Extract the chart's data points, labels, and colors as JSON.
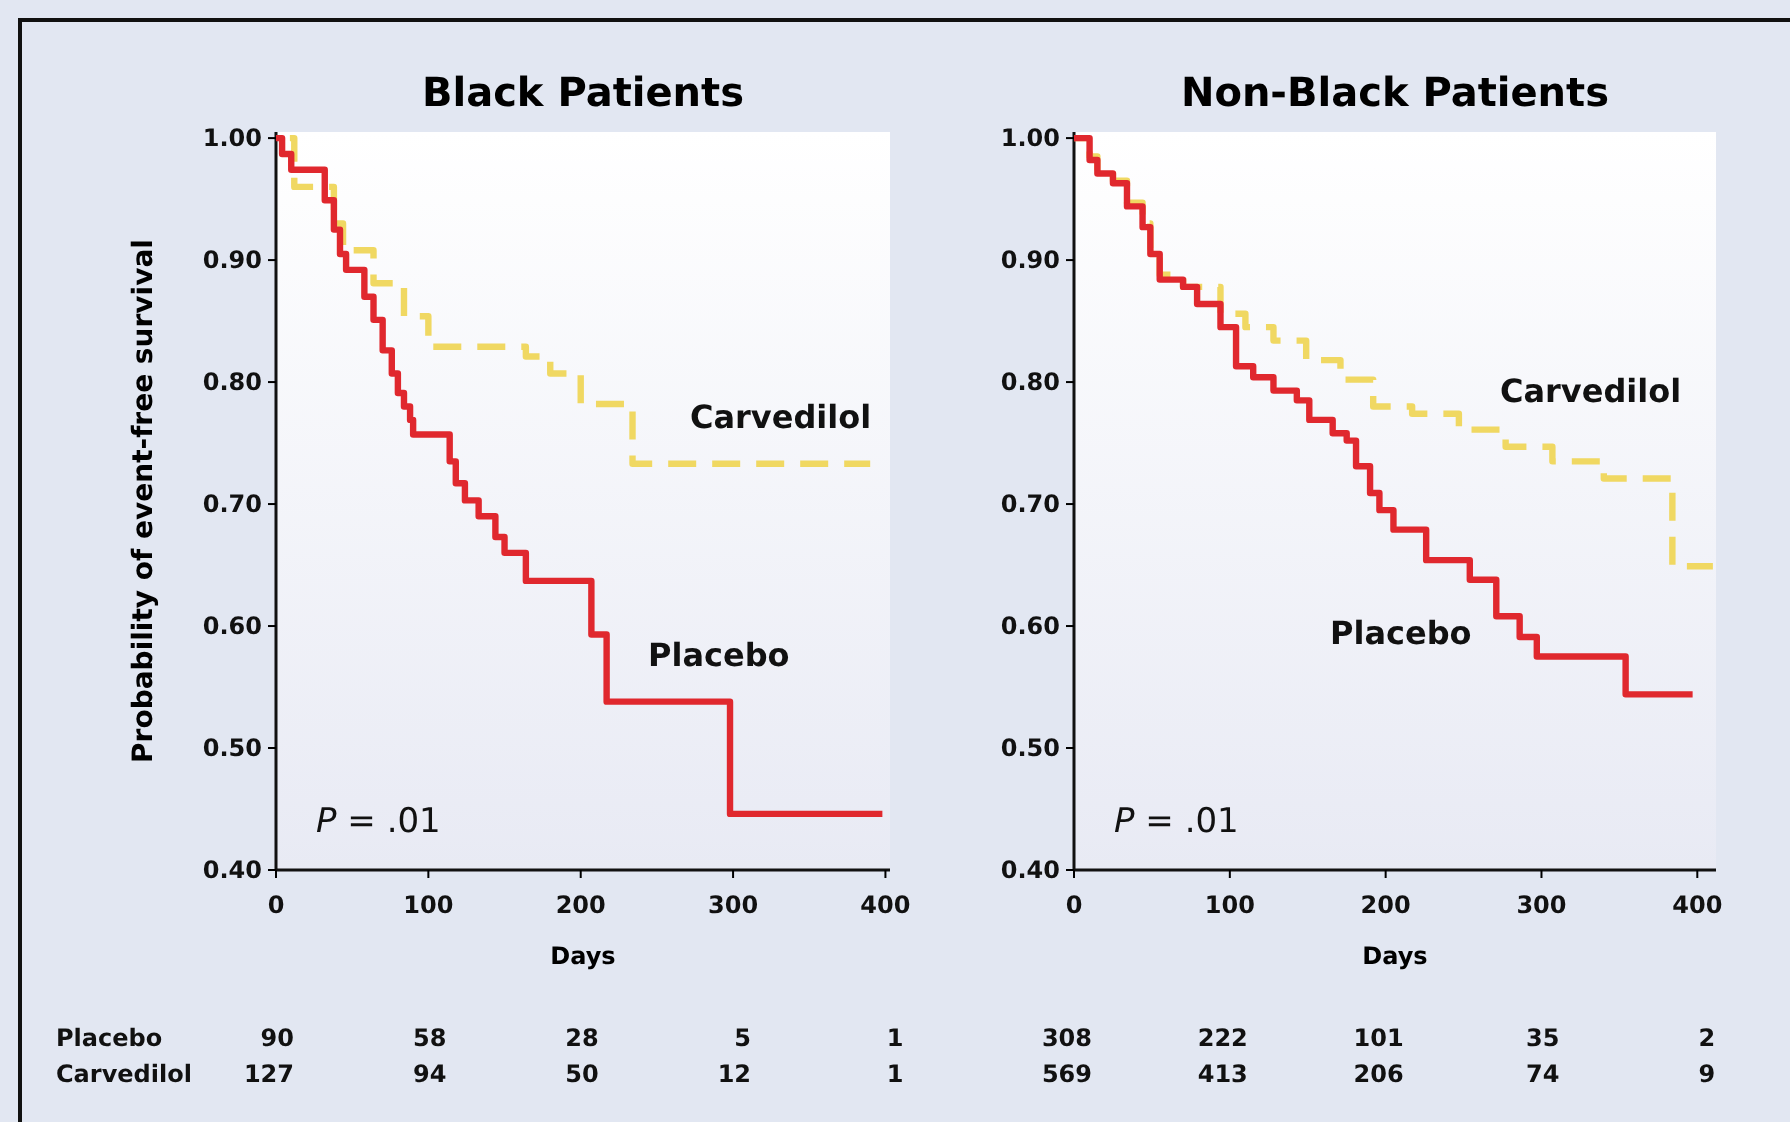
{
  "chart_data": [
    {
      "type": "step",
      "title": "Black Patients",
      "xlabel": "Days",
      "ylabel": "Probability of event-free survival",
      "xlim": [
        0,
        403
      ],
      "ylim": [
        0.4,
        1.005
      ],
      "xticks": [
        0,
        100,
        200,
        300,
        400
      ],
      "yticks": [
        {
          "value": 0.4,
          "label": "0.40"
        },
        {
          "value": 0.5,
          "label": "0.50"
        },
        {
          "value": 0.6,
          "label": "0.60"
        },
        {
          "value": 0.7,
          "label": "0.70"
        },
        {
          "value": 0.8,
          "label": "0.80"
        },
        {
          "value": 0.9,
          "label": "0.90"
        },
        {
          "value": 1.0,
          "label": "1.00"
        }
      ],
      "series": [
        {
          "name": "Carvedilol",
          "color": "#f0d862",
          "line_style": "dashed",
          "x": [
            0,
            12,
            38,
            44,
            64,
            84,
            100,
            164,
            180,
            200,
            234,
            390
          ],
          "values": [
            1.0,
            0.96,
            0.93,
            0.908,
            0.881,
            0.854,
            0.829,
            0.821,
            0.807,
            0.782,
            0.733,
            0.733
          ]
        },
        {
          "name": "Placebo",
          "color": "#e0282e",
          "line_style": "solid",
          "x": [
            0,
            4,
            10,
            32,
            38,
            42,
            46,
            58,
            64,
            70,
            76,
            80,
            84,
            88,
            90,
            114,
            118,
            124,
            133,
            144,
            150,
            164,
            207,
            217,
            298,
            398
          ],
          "values": [
            1.0,
            0.987,
            0.974,
            0.949,
            0.925,
            0.905,
            0.892,
            0.87,
            0.851,
            0.826,
            0.807,
            0.791,
            0.78,
            0.769,
            0.757,
            0.735,
            0.717,
            0.703,
            0.69,
            0.673,
            0.66,
            0.637,
            0.593,
            0.538,
            0.446,
            0.446
          ]
        }
      ],
      "annotations": [
        "P = .01",
        "Placebo",
        "Carvedilol",
        "90",
        "58",
        "28",
        "5",
        "1",
        "127",
        "94",
        "50",
        "12",
        "1"
      ]
    },
    {
      "type": "step",
      "title": "Non-Black Patients",
      "xlabel": "Days",
      "xlim": [
        0,
        412
      ],
      "ylim": [
        0.4,
        1.005
      ],
      "xticks": [
        0,
        100,
        200,
        300,
        400
      ],
      "yticks": [
        {
          "value": 0.4,
          "label": "0.40"
        },
        {
          "value": 0.5,
          "label": "0.50"
        },
        {
          "value": 0.6,
          "label": "0.60"
        },
        {
          "value": 0.7,
          "label": "0.70"
        },
        {
          "value": 0.8,
          "label": "0.80"
        },
        {
          "value": 0.9,
          "label": "0.90"
        },
        {
          "value": 1.0,
          "label": "1.00"
        }
      ],
      "series": [
        {
          "name": "Carvedilol",
          "color": "#f0d862",
          "line_style": "dashed",
          "x": [
            0,
            10,
            15,
            25,
            34,
            44,
            49,
            55,
            70,
            94,
            110,
            128,
            149,
            171,
            192,
            217,
            247,
            277,
            307,
            340,
            384,
            410
          ],
          "values": [
            1.0,
            0.985,
            0.975,
            0.965,
            0.947,
            0.93,
            0.91,
            0.888,
            0.878,
            0.856,
            0.845,
            0.834,
            0.818,
            0.802,
            0.78,
            0.774,
            0.761,
            0.747,
            0.735,
            0.721,
            0.649,
            0.649
          ]
        },
        {
          "name": "Placebo",
          "color": "#e0282e",
          "line_style": "solid",
          "x": [
            0,
            10,
            15,
            25,
            34,
            44,
            49,
            55,
            70,
            79,
            94,
            104,
            115,
            128,
            143,
            151,
            166,
            175,
            181,
            190,
            196,
            205,
            226,
            254,
            271,
            286,
            297,
            354,
            397
          ],
          "values": [
            1.0,
            0.982,
            0.971,
            0.963,
            0.944,
            0.927,
            0.905,
            0.884,
            0.878,
            0.864,
            0.845,
            0.813,
            0.804,
            0.793,
            0.785,
            0.769,
            0.758,
            0.752,
            0.731,
            0.709,
            0.695,
            0.679,
            0.654,
            0.638,
            0.608,
            0.591,
            0.575,
            0.544,
            0.544
          ]
        }
      ],
      "annotations": [
        "P = .01",
        "308",
        "222",
        "101",
        "35",
        "2",
        "569",
        "413",
        "206",
        "74",
        "9"
      ]
    }
  ]
}
